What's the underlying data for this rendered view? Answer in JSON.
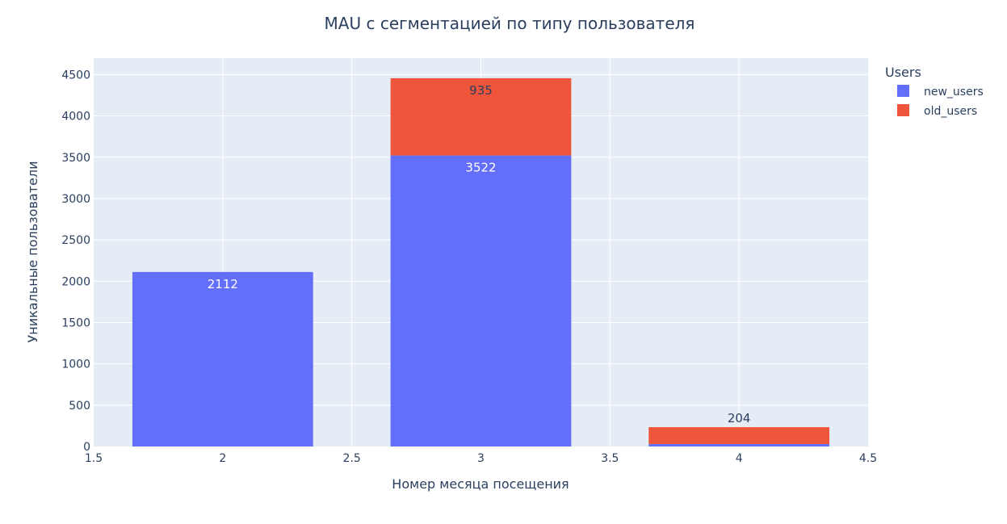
{
  "chart_data": {
    "type": "bar",
    "barmode": "stack",
    "title": "MAU с сегментацией по типу пользователя",
    "xlabel": "Номер месяца посещения",
    "ylabel": "Уникальные пользователи",
    "x": [
      2,
      3,
      4
    ],
    "xlim": [
      1.5,
      4.5
    ],
    "ylim": [
      0,
      4700
    ],
    "xticks": [
      "1.5",
      "2",
      "2.5",
      "3",
      "3.5",
      "4",
      "4.5"
    ],
    "yticks": [
      "0",
      "500",
      "1000",
      "1500",
      "2000",
      "2500",
      "3000",
      "3500",
      "4000",
      "4500"
    ],
    "grid": true,
    "legend_title": "Users",
    "legend_position": "top-right",
    "series": [
      {
        "name": "new_users",
        "color": "#636efa",
        "values": [
          2112,
          3522,
          30
        ],
        "labels": [
          "2112",
          "3522",
          ""
        ]
      },
      {
        "name": "old_users",
        "color": "#ef553b",
        "values": [
          0,
          935,
          204
        ],
        "labels": [
          "",
          "935",
          "204"
        ]
      }
    ]
  }
}
